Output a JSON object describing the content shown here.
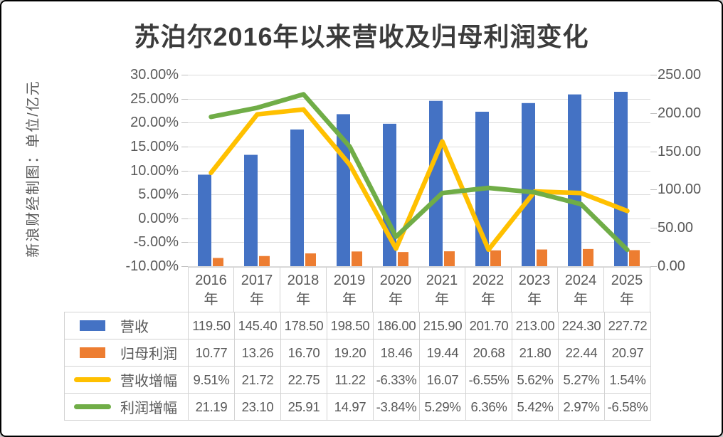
{
  "title": "苏泊尔2016年以来营收及归母利润变化",
  "side_label": "新浪财经制图：单位/亿元",
  "colors": {
    "revenue_bar": "#4472C4",
    "profit_bar": "#ED7D31",
    "revenue_growth_line": "#FFC000",
    "profit_growth_line": "#70AD47",
    "gridline": "#DCDCDC",
    "tick_mark": "#BFBFBF",
    "table_border": "#D3D3D3",
    "axis_text": "#595959",
    "title_text": "#3B3B3B"
  },
  "left_axis": {
    "tick_labels": [
      "30.00%",
      "25.00%",
      "20.00%",
      "15.00%",
      "10.00%",
      "5.00%",
      "0.00%",
      "-5.00%",
      "-10.00%"
    ],
    "min": -10,
    "max": 30
  },
  "right_axis": {
    "tick_labels": [
      "250.00",
      "200.00",
      "150.00",
      "100.00",
      "50.00",
      "0.00"
    ],
    "min": 0,
    "max": 250
  },
  "x_axis": {
    "years": [
      "2016",
      "2017",
      "2018",
      "2019",
      "2020",
      "2021",
      "2022",
      "2023",
      "2024",
      "2025"
    ],
    "suffix": "年"
  },
  "chart_data": {
    "type": "combo",
    "title": "苏泊尔2016年以来营收及归母利润变化",
    "categories": [
      "2016年",
      "2017年",
      "2018年",
      "2019年",
      "2020年",
      "2021年",
      "2022年",
      "2023年",
      "2024年",
      "2025年"
    ],
    "grid": true,
    "left_axis_label_format": "percent",
    "left_axis_range": [
      -10,
      30
    ],
    "right_axis_range": [
      0,
      250
    ],
    "series": [
      {
        "name": "营收",
        "type": "bar",
        "axis": "right",
        "color": "#4472C4",
        "values": [
          119.5,
          145.4,
          178.5,
          198.5,
          186.0,
          215.9,
          201.7,
          213.0,
          224.3,
          227.72
        ]
      },
      {
        "name": "归母利润",
        "type": "bar",
        "axis": "right",
        "color": "#ED7D31",
        "values": [
          10.77,
          13.26,
          16.7,
          19.2,
          18.46,
          19.44,
          20.68,
          21.8,
          22.44,
          20.97
        ]
      },
      {
        "name": "营收增幅",
        "type": "line",
        "axis": "left",
        "color": "#FFC000",
        "values": [
          9.51,
          21.72,
          22.75,
          11.22,
          -6.33,
          16.07,
          -6.55,
          5.62,
          5.27,
          1.54
        ]
      },
      {
        "name": "利润增幅",
        "type": "line",
        "axis": "left",
        "color": "#70AD47",
        "values": [
          21.19,
          23.1,
          25.91,
          14.97,
          -3.84,
          5.29,
          6.36,
          5.42,
          2.97,
          -6.58
        ]
      }
    ]
  },
  "table": {
    "rows": [
      {
        "label": "营收",
        "swatch": "bar",
        "color": "#4472C4",
        "cells": [
          "119.50",
          "145.40",
          "178.50",
          "198.50",
          "186.00",
          "215.90",
          "201.70",
          "213.00",
          "224.30",
          "227.72"
        ]
      },
      {
        "label": "归母利润",
        "swatch": "bar",
        "color": "#ED7D31",
        "cells": [
          "10.77",
          "13.26",
          "16.70",
          "19.20",
          "18.46",
          "19.44",
          "20.68",
          "21.80",
          "22.44",
          "20.97"
        ]
      },
      {
        "label": "营收增幅",
        "swatch": "line",
        "color": "#FFC000",
        "cells": [
          "9.51%",
          "21.72",
          "22.75",
          "11.22",
          "-6.33%",
          "16.07",
          "-6.55%",
          "5.62%",
          "5.27%",
          "1.54%"
        ]
      },
      {
        "label": "利润增幅",
        "swatch": "line",
        "color": "#70AD47",
        "cells": [
          "21.19",
          "23.10",
          "25.91",
          "14.97",
          "-3.84%",
          "5.29%",
          "6.36%",
          "5.42%",
          "2.97%",
          "-6.58%"
        ]
      }
    ]
  }
}
